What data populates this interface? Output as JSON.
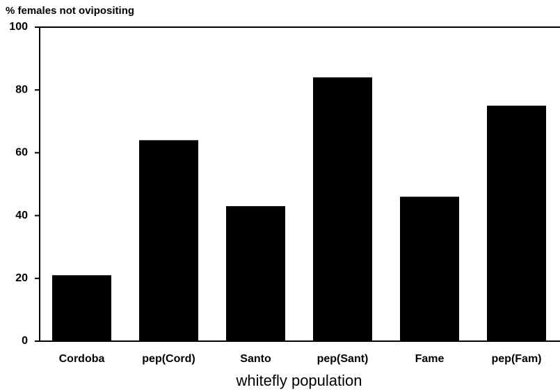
{
  "chart_data": {
    "type": "bar",
    "y_axis_label": "% females not ovipositing",
    "x_axis_label": "whitefly population",
    "categories": [
      "Cordoba",
      "pep(Cord)",
      "Santo",
      "pep(Sant)",
      "Fame",
      "pep(Fam)"
    ],
    "values": [
      21,
      64,
      43,
      84,
      46,
      75
    ],
    "color": "#000000",
    "ylim": [
      0,
      100
    ],
    "yticks": [
      0,
      20,
      40,
      60,
      80,
      100
    ],
    "grid": false
  }
}
